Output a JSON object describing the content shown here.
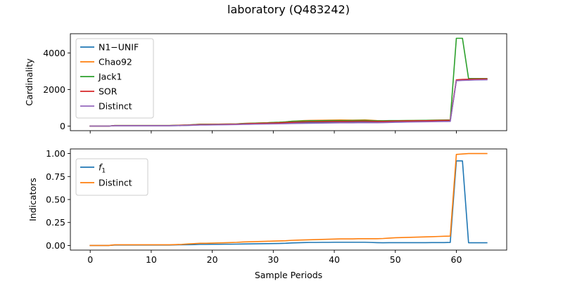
{
  "figure": {
    "title": "laboratory (Q483242)"
  },
  "chart_data": [
    {
      "type": "line",
      "ylabel": "Cardinality",
      "xlabel": "",
      "xlim": [
        -3.25,
        68.25
      ],
      "ylim": [
        -250,
        5050
      ],
      "grid": false,
      "legend_position": "upper left",
      "x_ticks": [
        0,
        10,
        20,
        30,
        40,
        50,
        60
      ],
      "x_tick_labels": [
        "",
        "",
        "",
        "",
        "",
        "",
        ""
      ],
      "y_ticks": [
        0,
        2000,
        4000
      ],
      "y_tick_labels": [
        "0",
        "2000",
        "4000"
      ],
      "series": [
        {
          "name": "N1−UNIF",
          "color": "#1f77b4",
          "x": [
            0,
            1,
            2,
            3,
            4,
            5,
            6,
            7,
            8,
            9,
            10,
            11,
            12,
            13,
            14,
            15,
            16,
            17,
            18,
            19,
            20,
            21,
            22,
            23,
            24,
            25,
            26,
            27,
            28,
            29,
            30,
            31,
            32,
            33,
            34,
            35,
            36,
            37,
            38,
            39,
            40,
            41,
            42,
            43,
            44,
            45,
            46,
            47,
            48,
            49,
            50,
            51,
            52,
            53,
            54,
            55,
            56,
            57,
            58,
            59,
            60,
            61,
            62,
            63,
            64,
            65
          ],
          "y": [
            0,
            0,
            0,
            0,
            20,
            20,
            20,
            20,
            20,
            20,
            20,
            20,
            20,
            20,
            25,
            30,
            40,
            50,
            70,
            70,
            75,
            80,
            85,
            90,
            100,
            110,
            115,
            120,
            125,
            130,
            140,
            150,
            160,
            170,
            180,
            185,
            190,
            195,
            200,
            205,
            210,
            215,
            215,
            215,
            220,
            220,
            220,
            215,
            220,
            230,
            240,
            240,
            245,
            250,
            250,
            255,
            260,
            265,
            270,
            275,
            2500,
            2520,
            2530,
            2540,
            2545,
            2550
          ]
        },
        {
          "name": "Chao92",
          "color": "#ff7f0e",
          "x": [
            0,
            1,
            2,
            3,
            4,
            5,
            6,
            7,
            8,
            9,
            10,
            11,
            12,
            13,
            14,
            15,
            16,
            17,
            18,
            19,
            20,
            21,
            22,
            23,
            24,
            25,
            26,
            27,
            28,
            29,
            30,
            31,
            32,
            33,
            34,
            35,
            36,
            37,
            38,
            39,
            40,
            41,
            42,
            43,
            44,
            45,
            46,
            47,
            48,
            49,
            50,
            51,
            52,
            53,
            54,
            55,
            56,
            57,
            58,
            59,
            60,
            61,
            62,
            63,
            64,
            65
          ],
          "y": [
            0,
            0,
            0,
            0,
            30,
            30,
            30,
            30,
            30,
            30,
            30,
            30,
            30,
            30,
            40,
            50,
            60,
            80,
            100,
            100,
            100,
            105,
            110,
            115,
            120,
            140,
            150,
            160,
            170,
            180,
            200,
            210,
            230,
            260,
            280,
            300,
            310,
            315,
            320,
            325,
            330,
            335,
            330,
            325,
            330,
            340,
            320,
            300,
            290,
            280,
            290,
            300,
            300,
            305,
            310,
            315,
            320,
            325,
            330,
            335,
            2520,
            2540,
            2550,
            2560,
            2560,
            2560
          ]
        },
        {
          "name": "Jack1",
          "color": "#2ca02c",
          "x": [
            0,
            1,
            2,
            3,
            4,
            5,
            6,
            7,
            8,
            9,
            10,
            11,
            12,
            13,
            14,
            15,
            16,
            17,
            18,
            19,
            20,
            21,
            22,
            23,
            24,
            25,
            26,
            27,
            28,
            29,
            30,
            31,
            32,
            33,
            34,
            35,
            36,
            37,
            38,
            39,
            40,
            41,
            42,
            43,
            44,
            45,
            46,
            47,
            48,
            49,
            50,
            51,
            52,
            53,
            54,
            55,
            56,
            57,
            58,
            59,
            60,
            61,
            62,
            63,
            64,
            65
          ],
          "y": [
            0,
            0,
            0,
            0,
            30,
            30,
            30,
            30,
            30,
            30,
            30,
            30,
            30,
            30,
            40,
            50,
            60,
            80,
            100,
            100,
            100,
            105,
            110,
            115,
            120,
            140,
            150,
            160,
            170,
            180,
            200,
            210,
            230,
            260,
            270,
            280,
            290,
            290,
            295,
            300,
            300,
            300,
            300,
            305,
            310,
            310,
            300,
            290,
            290,
            300,
            300,
            300,
            305,
            305,
            310,
            315,
            320,
            325,
            330,
            335,
            4800,
            4800,
            2600,
            2600,
            2600,
            2600
          ]
        },
        {
          "name": "SOR",
          "color": "#d62728",
          "x": [
            0,
            1,
            2,
            3,
            4,
            5,
            6,
            7,
            8,
            9,
            10,
            11,
            12,
            13,
            14,
            15,
            16,
            17,
            18,
            19,
            20,
            21,
            22,
            23,
            24,
            25,
            26,
            27,
            28,
            29,
            30,
            31,
            32,
            33,
            34,
            35,
            36,
            37,
            38,
            39,
            40,
            41,
            42,
            43,
            44,
            45,
            46,
            47,
            48,
            49,
            50,
            51,
            52,
            53,
            54,
            55,
            56,
            57,
            58,
            59,
            60,
            61,
            62,
            63,
            64,
            65
          ],
          "y": [
            0,
            0,
            0,
            0,
            25,
            25,
            25,
            25,
            25,
            25,
            25,
            25,
            25,
            25,
            35,
            45,
            55,
            70,
            85,
            85,
            90,
            95,
            100,
            105,
            110,
            125,
            135,
            140,
            150,
            160,
            170,
            180,
            195,
            210,
            220,
            230,
            240,
            240,
            245,
            250,
            255,
            255,
            255,
            260,
            265,
            265,
            260,
            255,
            255,
            265,
            270,
            275,
            280,
            285,
            290,
            295,
            300,
            305,
            310,
            315,
            2530,
            2550,
            2560,
            2570,
            2575,
            2580
          ]
        },
        {
          "name": "Distinct",
          "color": "#9467bd",
          "x": [
            0,
            1,
            2,
            3,
            4,
            5,
            6,
            7,
            8,
            9,
            10,
            11,
            12,
            13,
            14,
            15,
            16,
            17,
            18,
            19,
            20,
            21,
            22,
            23,
            24,
            25,
            26,
            27,
            28,
            29,
            30,
            31,
            32,
            33,
            34,
            35,
            36,
            37,
            38,
            39,
            40,
            41,
            42,
            43,
            44,
            45,
            46,
            47,
            48,
            49,
            50,
            51,
            52,
            53,
            54,
            55,
            56,
            57,
            58,
            59,
            60,
            61,
            62,
            63,
            64,
            65
          ],
          "y": [
            0,
            0,
            0,
            0,
            20,
            20,
            20,
            20,
            20,
            20,
            20,
            20,
            20,
            20,
            25,
            30,
            40,
            50,
            60,
            60,
            65,
            70,
            75,
            80,
            85,
            95,
            100,
            105,
            110,
            115,
            120,
            125,
            130,
            140,
            145,
            150,
            155,
            160,
            165,
            170,
            175,
            180,
            180,
            180,
            185,
            185,
            185,
            185,
            190,
            200,
            210,
            215,
            220,
            225,
            230,
            235,
            240,
            245,
            250,
            255,
            2480,
            2500,
            2510,
            2520,
            2525,
            2530
          ]
        }
      ]
    },
    {
      "type": "line",
      "ylabel": "Indicators",
      "xlabel": "Sample Periods",
      "xlim": [
        -3.25,
        68.25
      ],
      "ylim": [
        -0.05,
        1.05
      ],
      "grid": false,
      "legend_position": "upper left",
      "x_ticks": [
        0,
        10,
        20,
        30,
        40,
        50,
        60
      ],
      "x_tick_labels": [
        "0",
        "10",
        "20",
        "30",
        "40",
        "50",
        "60"
      ],
      "y_ticks": [
        0.0,
        0.25,
        0.5,
        0.75,
        1.0
      ],
      "y_tick_labels": [
        "0.00",
        "0.25",
        "0.50",
        "0.75",
        "1.00"
      ],
      "series": [
        {
          "name": "f1",
          "label_main": "f",
          "label_sub": "1",
          "color": "#1f77b4",
          "x": [
            0,
            1,
            2,
            3,
            4,
            5,
            6,
            7,
            8,
            9,
            10,
            11,
            12,
            13,
            14,
            15,
            16,
            17,
            18,
            19,
            20,
            21,
            22,
            23,
            24,
            25,
            26,
            27,
            28,
            29,
            30,
            31,
            32,
            33,
            34,
            35,
            36,
            37,
            38,
            39,
            40,
            41,
            42,
            43,
            44,
            45,
            46,
            47,
            48,
            49,
            50,
            51,
            52,
            53,
            54,
            55,
            56,
            57,
            58,
            59,
            60,
            61,
            62,
            63,
            64,
            65
          ],
          "y": [
            0,
            0,
            0,
            0,
            0.005,
            0.005,
            0.005,
            0.005,
            0.005,
            0.005,
            0.005,
            0.005,
            0.005,
            0.005,
            0.007,
            0.008,
            0.009,
            0.01,
            0.012,
            0.012,
            0.013,
            0.013,
            0.014,
            0.014,
            0.015,
            0.016,
            0.017,
            0.018,
            0.019,
            0.02,
            0.021,
            0.022,
            0.024,
            0.028,
            0.03,
            0.032,
            0.033,
            0.033,
            0.034,
            0.034,
            0.035,
            0.035,
            0.035,
            0.035,
            0.035,
            0.035,
            0.033,
            0.031,
            0.03,
            0.031,
            0.031,
            0.031,
            0.031,
            0.031,
            0.031,
            0.031,
            0.032,
            0.032,
            0.032,
            0.033,
            0.92,
            0.92,
            0.03,
            0.03,
            0.03,
            0.03
          ]
        },
        {
          "name": "Distinct",
          "color": "#ff7f0e",
          "x": [
            0,
            1,
            2,
            3,
            4,
            5,
            6,
            7,
            8,
            9,
            10,
            11,
            12,
            13,
            14,
            15,
            16,
            17,
            18,
            19,
            20,
            21,
            22,
            23,
            24,
            25,
            26,
            27,
            28,
            29,
            30,
            31,
            32,
            33,
            34,
            35,
            36,
            37,
            38,
            39,
            40,
            41,
            42,
            43,
            44,
            45,
            46,
            47,
            48,
            49,
            50,
            51,
            52,
            53,
            54,
            55,
            56,
            57,
            58,
            59,
            60,
            61,
            62,
            63,
            64,
            65
          ],
          "y": [
            0,
            0,
            0,
            0,
            0.008,
            0.008,
            0.008,
            0.008,
            0.008,
            0.008,
            0.008,
            0.008,
            0.008,
            0.008,
            0.01,
            0.012,
            0.016,
            0.02,
            0.024,
            0.024,
            0.026,
            0.028,
            0.03,
            0.032,
            0.034,
            0.038,
            0.04,
            0.042,
            0.044,
            0.046,
            0.048,
            0.05,
            0.052,
            0.056,
            0.058,
            0.06,
            0.062,
            0.064,
            0.066,
            0.068,
            0.07,
            0.072,
            0.072,
            0.072,
            0.074,
            0.074,
            0.074,
            0.074,
            0.076,
            0.08,
            0.084,
            0.086,
            0.088,
            0.09,
            0.092,
            0.094,
            0.096,
            0.098,
            0.1,
            0.102,
            0.99,
            0.995,
            1.0,
            1.0,
            1.0,
            1.0
          ]
        }
      ]
    }
  ]
}
